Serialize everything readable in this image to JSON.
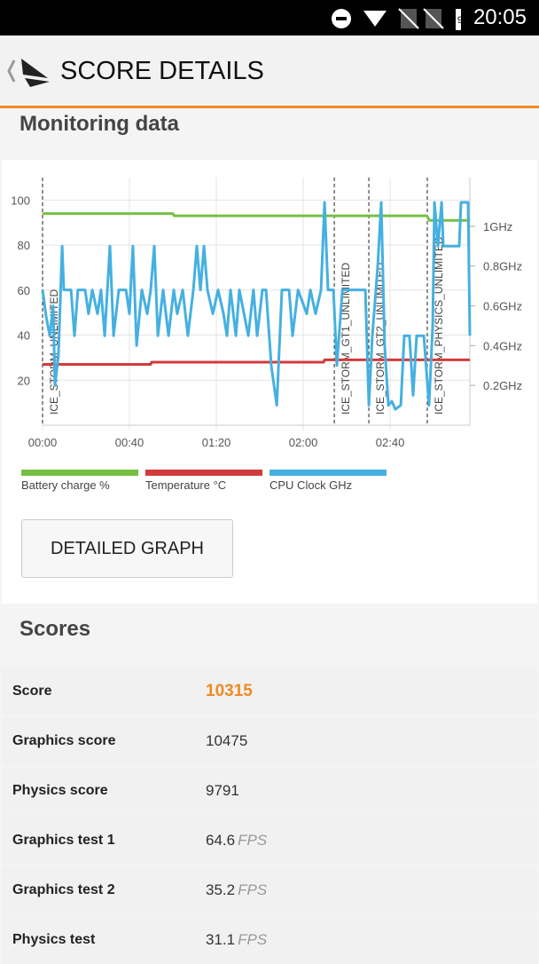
{
  "status_bar": {
    "battery": "91",
    "time": "20:05"
  },
  "app_bar": {
    "title": "SCORE DETAILS"
  },
  "monitoring": {
    "title": "Monitoring data",
    "button": "DETAILED GRAPH"
  },
  "chart_data": {
    "type": "line",
    "xlim": [
      0,
      196.7
    ],
    "xticks": [
      {
        "value": 0,
        "label": "00:00"
      },
      {
        "value": 40,
        "label": "00:40"
      },
      {
        "value": 80,
        "label": "01:20"
      },
      {
        "value": 120,
        "label": "02:00"
      },
      {
        "value": 160,
        "label": "02:40"
      }
    ],
    "ylim": [
      0,
      110
    ],
    "yticks": [
      20,
      40,
      60,
      80,
      100
    ],
    "y2lim": [
      0,
      1.245
    ],
    "y2ticks": [
      {
        "value": 0.2,
        "label": "0.2GHz"
      },
      {
        "value": 0.4,
        "label": "0.4GHz"
      },
      {
        "value": 0.6,
        "label": "0.6GHz"
      },
      {
        "value": 0.8,
        "label": "0.8GHz"
      },
      {
        "value": 1,
        "label": "1GHz"
      }
    ],
    "grid": true,
    "markers": [
      {
        "x": 0,
        "label": "ICE_STORM_UNLIMITED"
      },
      {
        "x": 134.3,
        "label": "ICE_STORM_GT1_UNLIMITED"
      },
      {
        "x": 150.2,
        "label": "ICE_STORM_GT2_UNLIMITED"
      },
      {
        "x": 177.1,
        "label": "ICE_STORM_PHYSICS_UNLIMITED"
      }
    ],
    "series": [
      {
        "name": "Battery charge %",
        "color": "#76c043",
        "x": [
          0,
          60,
          60.5,
          177,
          178,
          196.7
        ],
        "values": [
          94,
          94,
          93,
          93,
          91,
          91
        ]
      },
      {
        "name": "Temperature °C",
        "color": "#d23b3b",
        "x": [
          0,
          49.8,
          50.2,
          129.4,
          129.8,
          196.7
        ],
        "values": [
          27,
          27,
          28,
          28,
          29,
          29
        ]
      },
      {
        "name": "CPU Clock GHz",
        "color": "#45b0e1",
        "axis": "y2",
        "x": [
          0,
          1.6,
          3.3,
          4.9,
          5.7,
          7.3,
          9.0,
          9.8,
          13.1,
          14.7,
          16.3,
          19.6,
          21.2,
          22.9,
          25.3,
          26.9,
          28.6,
          31.0,
          32.7,
          35.1,
          38.4,
          40.0,
          41.6,
          43.3,
          45.7,
          48.2,
          49.8,
          51.4,
          53.1,
          55.5,
          58.0,
          60.4,
          62.0,
          64.5,
          66.9,
          69.4,
          71.0,
          72.7,
          74.3,
          75.9,
          78.4,
          80.8,
          83.3,
          84.9,
          86.5,
          89.0,
          90.6,
          94.7,
          97.1,
          98.8,
          101.2,
          102.9,
          105.3,
          107.8,
          110.2,
          113.5,
          115.1,
          117.6,
          121.6,
          123.3,
          125.7,
          128.2,
          129.8,
          131.4,
          133.9,
          135.5,
          138.0,
          148.6,
          150.2,
          151.8,
          154.3,
          155.9,
          157.5,
          159.2,
          160.8,
          162.4,
          164.9,
          166.5,
          168.9,
          170.6,
          172.2,
          175.5,
          177.9,
          179.6,
          180.4,
          182.0,
          183.7,
          184.5,
          189.3,
          191.8,
          192.6,
          195.9,
          196.7
        ],
        "values": [
          0.68,
          0.55,
          0.45,
          0.6,
          0.2,
          0.35,
          0.9,
          0.68,
          0.68,
          0.45,
          0.68,
          0.68,
          0.56,
          0.68,
          0.56,
          0.68,
          0.45,
          0.9,
          0.45,
          0.68,
          0.68,
          0.56,
          0.9,
          0.4,
          0.68,
          0.56,
          0.68,
          0.9,
          0.45,
          0.68,
          0.45,
          0.68,
          0.56,
          0.68,
          0.45,
          0.68,
          0.9,
          0.68,
          0.9,
          0.68,
          0.56,
          0.68,
          0.56,
          0.45,
          0.68,
          0.45,
          0.68,
          0.45,
          0.68,
          0.45,
          0.68,
          0.68,
          0.3,
          0.1,
          0.68,
          0.68,
          0.45,
          0.68,
          0.56,
          0.68,
          0.56,
          0.68,
          1.12,
          0.68,
          0.68,
          0.3,
          0.68,
          0.68,
          0.1,
          0.45,
          0.8,
          1.12,
          0.4,
          0.1,
          0.12,
          0.08,
          0.1,
          0.45,
          0.45,
          0.15,
          0.45,
          0.45,
          0.1,
          0.5,
          1.12,
          0.9,
          1.12,
          0.9,
          0.9,
          0.9,
          1.12,
          1.12,
          0.45
        ]
      }
    ]
  },
  "scores": {
    "title": "Scores",
    "rows": [
      {
        "label": "Score",
        "value": 10315
      },
      {
        "label": "Graphics score",
        "value": 10475
      },
      {
        "label": "Physics score",
        "value": 9791
      },
      {
        "label": "Graphics test 1",
        "value": 64.6,
        "unit": "FPS"
      },
      {
        "label": "Graphics test 2",
        "value": 35.2,
        "unit": "FPS"
      },
      {
        "label": "Physics test",
        "value": 31.1,
        "unit": "FPS"
      }
    ]
  }
}
